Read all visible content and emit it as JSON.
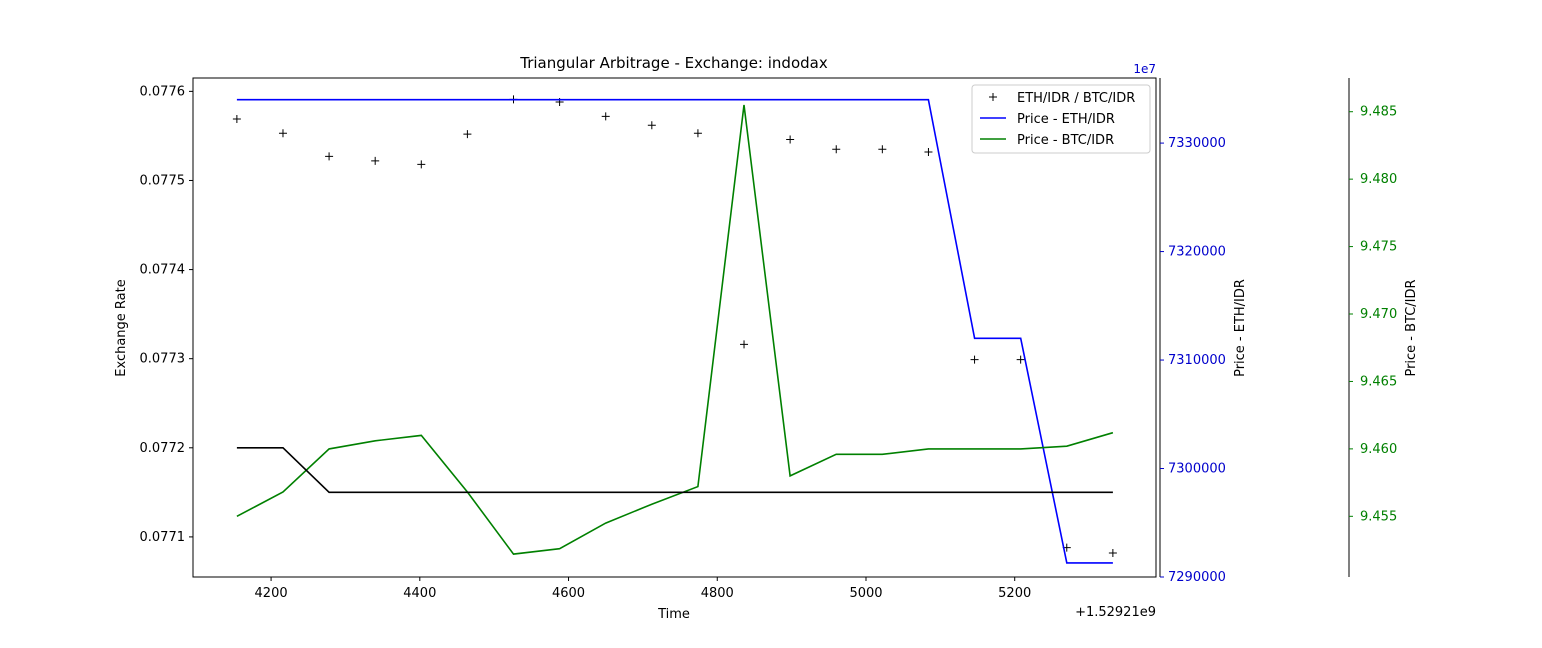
{
  "chart_data": {
    "type": "line",
    "title": "Triangular Arbitrage - Exchange: indodax",
    "xlabel": "Time",
    "x_offset_label": "+1.52921e9",
    "x_ticks": [
      4200,
      4400,
      4600,
      4800,
      5000,
      5200
    ],
    "xlim": [
      4095,
      5390
    ],
    "axes": {
      "left": {
        "label": "Exchange Rate",
        "color": "#000000",
        "ylim": [
          0.077055,
          0.077615
        ],
        "ticks": [
          0.0771,
          0.0772,
          0.0773,
          0.0774,
          0.0775,
          0.0776
        ],
        "tick_labels": [
          "0.0771",
          "0.0772",
          "0.0773",
          "0.0774",
          "0.0775",
          "0.0776"
        ]
      },
      "right1": {
        "label": "Price - ETH/IDR",
        "color": "#0000cc",
        "multiplier_label": "1e7",
        "ylim": [
          7290000,
          7336000
        ],
        "ticks": [
          7290000,
          7300000,
          7310000,
          7320000,
          7330000
        ],
        "tick_labels": [
          "7290000",
          "7300000",
          "7310000",
          "7320000",
          "7330000"
        ]
      },
      "right2": {
        "label": "Price - BTC/IDR",
        "color": "#008000",
        "ylim": [
          9.4505,
          9.4875
        ],
        "ticks": [
          9.455,
          9.46,
          9.465,
          9.47,
          9.475,
          9.48,
          9.485
        ],
        "tick_labels": [
          "9.455",
          "9.460",
          "9.465",
          "9.470",
          "9.475",
          "9.480",
          "9.485"
        ]
      }
    },
    "x": [
      4154,
      4216,
      4278,
      4340,
      4402,
      4464,
      4526,
      4588,
      4650,
      4712,
      4774,
      4836,
      4898,
      4960,
      5022,
      5084,
      5146,
      5208,
      5270,
      5332
    ],
    "series": [
      {
        "name": "ETH/IDR / BTC/IDR",
        "axis": "left",
        "style": "marker",
        "color": "#000000",
        "values": [
          0.077569,
          0.077553,
          0.077527,
          0.077522,
          0.077518,
          0.077552,
          0.077591,
          0.077588,
          0.077572,
          0.077562,
          0.077553,
          0.077316,
          0.077546,
          0.077535,
          0.077535,
          0.077532,
          0.077299,
          0.077299,
          0.077088,
          0.077082
        ]
      },
      {
        "name": "Price - ETH/IDR",
        "axis": "right1",
        "style": "line",
        "color": "#0000ff",
        "values": [
          7334000,
          7334000,
          7334000,
          7334000,
          7334000,
          7334000,
          7334000,
          7334000,
          7334000,
          7334000,
          7334000,
          7334000,
          7334000,
          7334000,
          7334000,
          7334000,
          7312000,
          7312000,
          7291300,
          7291300
        ]
      },
      {
        "name": "Price - BTC/IDR",
        "axis": "right2",
        "style": "line",
        "color": "#008000",
        "values": [
          9.455,
          9.4568,
          9.46,
          9.4606,
          9.461,
          9.4568,
          9.4522,
          9.4526,
          9.4545,
          9.4559,
          9.4572,
          9.4855,
          9.458,
          9.4596,
          9.4596,
          9.46,
          9.46,
          9.46,
          9.4602,
          9.4612
        ]
      },
      {
        "axis": "left",
        "style": "line",
        "color": "#000000",
        "values": [
          0.0772,
          0.0772,
          0.07715,
          0.07715,
          0.07715,
          0.07715,
          0.07715,
          0.07715,
          0.07715,
          0.07715,
          0.07715,
          0.07715,
          0.07715,
          0.07715,
          0.07715,
          0.07715,
          0.07715,
          0.07715,
          0.07715,
          0.07715
        ]
      }
    ],
    "legend": {
      "placement": "top-right",
      "entries": [
        "ETH/IDR / BTC/IDR",
        "Price - ETH/IDR",
        "Price - BTC/IDR"
      ]
    },
    "grid": false
  }
}
